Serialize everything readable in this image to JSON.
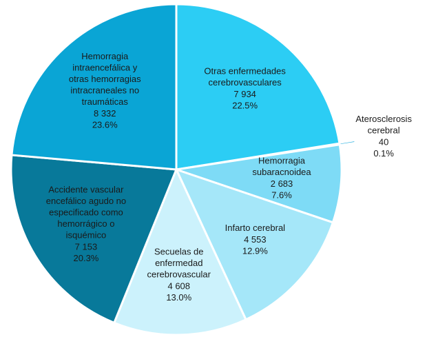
{
  "chart_data": {
    "type": "pie",
    "categories": [
      "Otras enfermedades\ncerebrovasculares",
      "Aterosclerosis\ncerebral",
      "Hemorragia\nsubaracnoidea",
      "Infarto cerebral",
      "Secuelas de\nenfermedad\ncerebrovascular",
      "Accidente vascular\nencefálico agudo no\nespecificado como\nhemorrágico o\nisquémico",
      "Hemorragia\nintraencefálica y\notras hemorragias\nintracraneales no\ntraumáticas"
    ],
    "values": [
      7934,
      40,
      2683,
      4553,
      4608,
      7153,
      8332
    ],
    "value_labels": [
      "7 934",
      "40",
      "2 683",
      "4 553",
      "4 608",
      "7 153",
      "8 332"
    ],
    "percents": [
      22.5,
      0.1,
      7.6,
      12.9,
      13.0,
      20.3,
      23.6
    ],
    "percent_labels": [
      "22.5%",
      "0.1%",
      "7.6%",
      "12.9%",
      "13.0%",
      "20.3%",
      "23.6%"
    ],
    "colors": [
      "#2ccdf4",
      "#17a9dc",
      "#7edbf6",
      "#a5e7f9",
      "#ccf2fc",
      "#08799a",
      "#0aa5d5"
    ]
  }
}
